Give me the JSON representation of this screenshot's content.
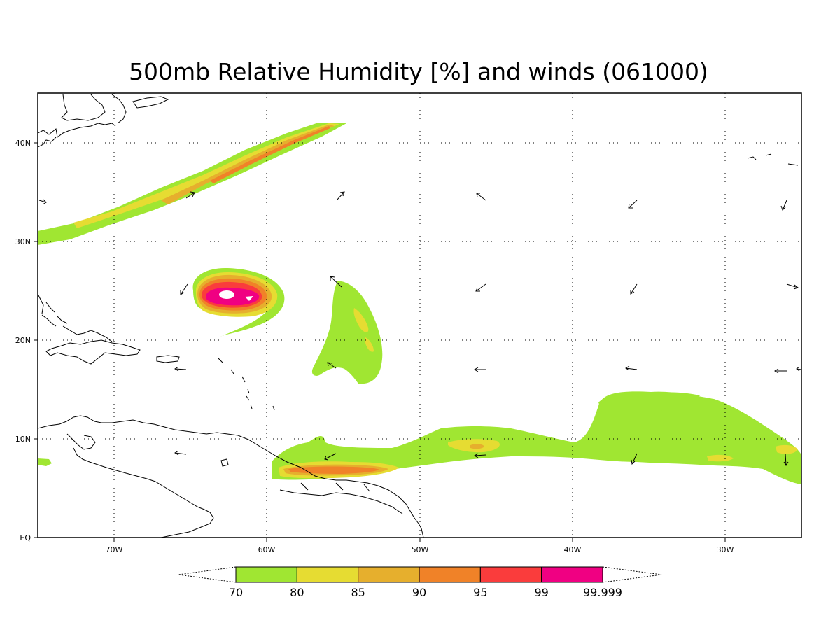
{
  "title": "500mb Relative Humidity [%] and winds (061000)",
  "axes": {
    "x_ticks": [
      "70W",
      "60W",
      "50W",
      "40W",
      "30W"
    ],
    "y_ticks": [
      "EQ",
      "10N",
      "20N",
      "30N",
      "40N"
    ]
  },
  "colorbar": {
    "labels": [
      "70",
      "80",
      "85",
      "90",
      "95",
      "99",
      "99.999"
    ],
    "colors": [
      "#a0e632",
      "#e6dc32",
      "#e6af2d",
      "#f08228",
      "#fa3c3c",
      "#f00082"
    ]
  },
  "map": {
    "lon_range": [
      -75,
      -25
    ],
    "lat_range": [
      0,
      45
    ],
    "gridlines": "dotted",
    "features": [
      "coastlines",
      "relative-humidity-shading",
      "wind-vectors"
    ]
  }
}
